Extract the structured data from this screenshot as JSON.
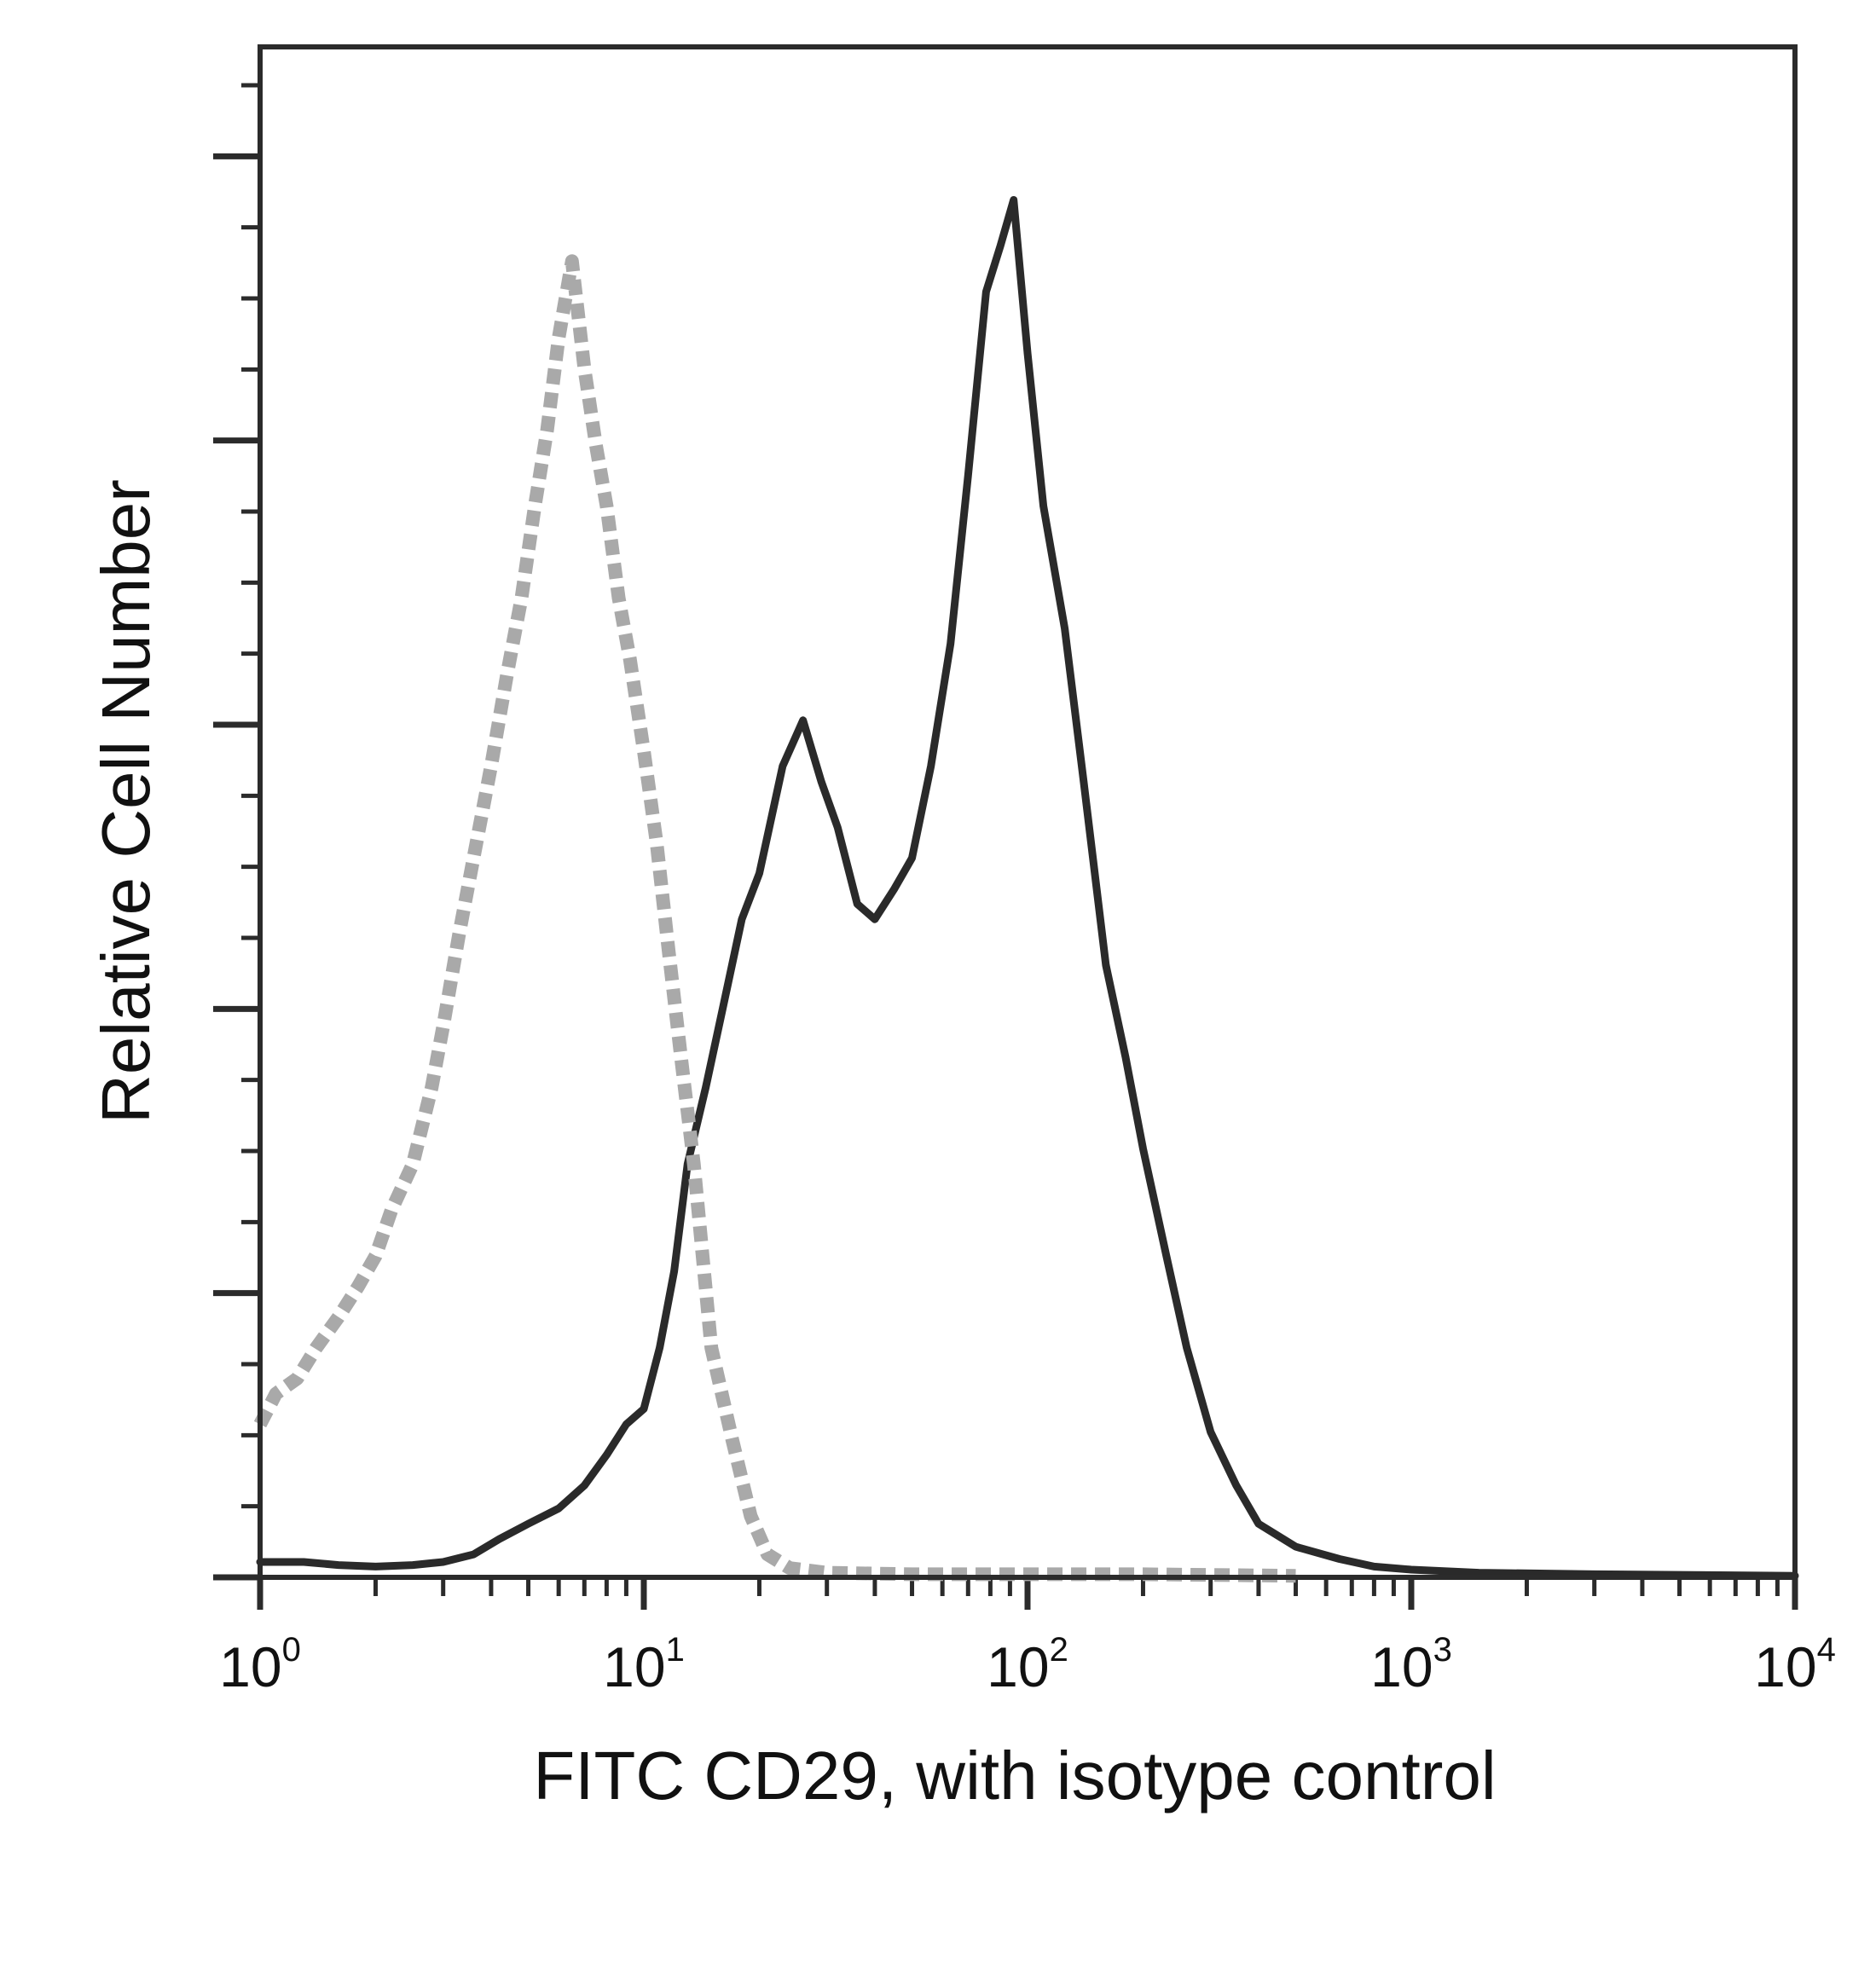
{
  "colors": {
    "sample": "#2a2a2a",
    "isotype": "#a9a9a9",
    "axis": "#2b2b2b",
    "text": "#111111"
  },
  "chart_data": {
    "type": "line",
    "title": "",
    "xlabel": "FITC CD29, with isotype control",
    "ylabel": "Relative Cell Number",
    "x_scale": "log",
    "xlim": [
      1,
      10000
    ],
    "ylim": [
      0,
      100
    ],
    "grid": false,
    "legend": "none",
    "x_ticks": [
      {
        "value": 1,
        "base": "10",
        "exp": "0"
      },
      {
        "value": 10,
        "base": "10",
        "exp": "1"
      },
      {
        "value": 100,
        "base": "10",
        "exp": "2"
      },
      {
        "value": 1000,
        "base": "10",
        "exp": "3"
      },
      {
        "value": 10000,
        "base": "10",
        "exp": "4"
      }
    ],
    "series": [
      {
        "style": "solid-dark",
        "x": [
          1.0,
          1.3,
          1.6,
          2.0,
          2.5,
          3.0,
          3.6,
          4.2,
          5.0,
          6.0,
          7.0,
          8.0,
          9.0,
          10.0,
          11.0,
          12.0,
          13.0,
          14.5,
          16.0,
          18.0,
          20.0,
          23.0,
          26.0,
          29.0,
          32.0,
          36.0,
          40.0,
          45.0,
          50.0,
          56.0,
          63.0,
          70.0,
          78.0,
          85.0,
          92.0,
          100.0,
          110.0,
          125.0,
          140.0,
          160.0,
          180.0,
          200.0,
          230.0,
          260.0,
          300.0,
          350.0,
          400.0,
          500.0,
          650.0,
          800.0,
          1000.0,
          1500.0,
          3000.0,
          10000.0
        ],
        "y": [
          1.0,
          1.0,
          0.8,
          0.7,
          0.8,
          1.0,
          1.5,
          2.5,
          3.5,
          4.5,
          6.0,
          8.0,
          10.0,
          11.0,
          15.0,
          20.0,
          27.0,
          32.0,
          37.0,
          43.0,
          46.0,
          53.0,
          56.0,
          52.0,
          49.0,
          44.0,
          43.0,
          45.0,
          47.0,
          53.0,
          61.0,
          72.0,
          84.0,
          87.0,
          90.0,
          80.0,
          70.0,
          62.0,
          52.0,
          40.0,
          34.0,
          28.0,
          21.0,
          15.0,
          9.5,
          6.0,
          3.5,
          2.0,
          1.2,
          0.7,
          0.5,
          0.3,
          0.2,
          0.1
        ]
      },
      {
        "style": "dotted-gray",
        "x": [
          1.0,
          1.1,
          1.25,
          1.4,
          1.6,
          1.8,
          2.0,
          2.2,
          2.5,
          2.8,
          3.0,
          3.3,
          3.6,
          4.0,
          4.4,
          4.8,
          5.2,
          5.6,
          6.0,
          6.5,
          7.0,
          7.5,
          8.0,
          8.6,
          9.2,
          10.0,
          10.8,
          11.6,
          12.5,
          13.5,
          15.0,
          17.0,
          19.0,
          21.0,
          24.0,
          30.0,
          50.0,
          100.0,
          200.0,
          500.0
        ],
        "y": [
          10.0,
          12.0,
          13.0,
          15.0,
          17.0,
          19.0,
          21.0,
          24.0,
          27.0,
          32.0,
          36.0,
          42.0,
          47.0,
          53.0,
          59.0,
          64.0,
          70.0,
          75.0,
          81.0,
          86.0,
          79.0,
          74.0,
          70.0,
          64.0,
          60.0,
          54.0,
          48.0,
          41.0,
          34.0,
          27.0,
          15.0,
          9.0,
          4.0,
          1.5,
          0.6,
          0.3,
          0.2,
          0.2,
          0.2,
          0.1
        ]
      }
    ]
  }
}
